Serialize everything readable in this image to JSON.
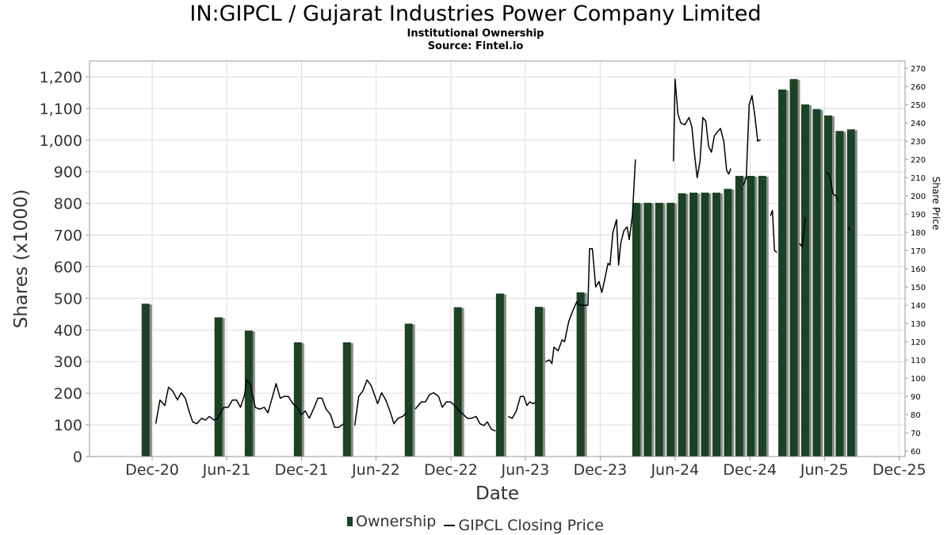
{
  "title": "IN:GIPCL / Gujarat Industries Power Company Limited",
  "subtitle_1": "Institutional Ownership",
  "subtitle_2": "Source: Fintel.io",
  "colors": {
    "bar": "#1a4224",
    "bar_shadow": "#8a8a8a",
    "line": "#000000",
    "grid": "#dddddd"
  },
  "chart_data": {
    "type": "bar",
    "xlabel": "Date",
    "ylabel": "Shares (x1000)",
    "y2label": "Share Price",
    "ylim": [
      0,
      1250
    ],
    "y2lim": [
      57,
      274
    ],
    "yticks": [
      0,
      100,
      200,
      300,
      400,
      500,
      600,
      700,
      800,
      900,
      1000,
      1100,
      1200
    ],
    "yticks_labels": [
      "0",
      "100",
      "200",
      "300",
      "400",
      "500",
      "600",
      "700",
      "800",
      "900",
      "1,000",
      "1,100",
      "1,200"
    ],
    "y2ticks": [
      60,
      70,
      80,
      90,
      100,
      110,
      120,
      130,
      140,
      150,
      160,
      170,
      180,
      190,
      200,
      210,
      220,
      230,
      240,
      250,
      260,
      270
    ],
    "xlim": [
      "2020-07-01",
      "2025-12-15"
    ],
    "xticks": [
      {
        "date": "2020-12-01",
        "label": "Dec-20"
      },
      {
        "date": "2021-06-01",
        "label": "Jun-21"
      },
      {
        "date": "2021-12-01",
        "label": "Dec-21"
      },
      {
        "date": "2022-06-01",
        "label": "Jun-22"
      },
      {
        "date": "2022-12-01",
        "label": "Dec-22"
      },
      {
        "date": "2023-06-01",
        "label": "Jun-23"
      },
      {
        "date": "2023-12-01",
        "label": "Dec-23"
      },
      {
        "date": "2024-06-01",
        "label": "Jun-24"
      },
      {
        "date": "2024-12-01",
        "label": "Dec-24"
      },
      {
        "date": "2025-06-01",
        "label": "Jun-25"
      },
      {
        "date": "2025-12-01",
        "label": "Dec-25"
      }
    ],
    "grid": true,
    "legend_position": "bottom-center",
    "series": [
      {
        "name": "Ownership",
        "type": "bar",
        "axis": "left",
        "points": [
          {
            "x": "2020-11-15",
            "y": 483
          },
          {
            "x": "2021-05-12",
            "y": 440
          },
          {
            "x": "2021-07-25",
            "y": 398
          },
          {
            "x": "2021-11-22",
            "y": 361
          },
          {
            "x": "2022-03-22",
            "y": 361
          },
          {
            "x": "2022-08-20",
            "y": 420
          },
          {
            "x": "2022-12-18",
            "y": 472
          },
          {
            "x": "2023-03-31",
            "y": 515
          },
          {
            "x": "2023-07-04",
            "y": 473
          },
          {
            "x": "2023-10-14",
            "y": 519
          },
          {
            "x": "2024-02-27",
            "y": 802
          },
          {
            "x": "2024-03-26",
            "y": 802
          },
          {
            "x": "2024-04-23",
            "y": 802
          },
          {
            "x": "2024-05-21",
            "y": 802
          },
          {
            "x": "2024-06-18",
            "y": 832
          },
          {
            "x": "2024-07-16",
            "y": 834
          },
          {
            "x": "2024-08-13",
            "y": 834
          },
          {
            "x": "2024-09-10",
            "y": 834
          },
          {
            "x": "2024-10-08",
            "y": 846
          },
          {
            "x": "2024-11-05",
            "y": 887
          },
          {
            "x": "2024-12-03",
            "y": 887
          },
          {
            "x": "2024-12-31",
            "y": 887
          },
          {
            "x": "2025-02-18",
            "y": 1160
          },
          {
            "x": "2025-03-18",
            "y": 1193
          },
          {
            "x": "2025-04-15",
            "y": 1113
          },
          {
            "x": "2025-05-13",
            "y": 1098
          },
          {
            "x": "2025-06-10",
            "y": 1078
          },
          {
            "x": "2025-07-08",
            "y": 1029
          },
          {
            "x": "2025-08-05",
            "y": 1034
          }
        ]
      },
      {
        "name": "GIPCL Closing Price",
        "type": "line",
        "axis": "right",
        "points": [
          [
            "2020-12-10",
            75
          ],
          [
            "2020-12-20",
            88
          ],
          [
            "2021-01-01",
            85
          ],
          [
            "2021-01-10",
            95
          ],
          [
            "2021-01-20",
            93
          ],
          [
            "2021-02-01",
            88
          ],
          [
            "2021-02-10",
            92
          ],
          [
            "2021-02-20",
            89
          ],
          [
            "2021-03-01",
            82
          ],
          [
            "2021-03-10",
            76
          ],
          [
            "2021-03-20",
            75
          ],
          [
            "2021-04-01",
            78
          ],
          [
            "2021-04-10",
            77
          ],
          [
            "2021-04-20",
            79
          ],
          [
            "2021-05-01",
            77
          ],
          [
            "2021-05-10",
            78
          ],
          [
            "2021-05-25",
            84
          ],
          [
            "2021-06-05",
            84
          ],
          [
            "2021-06-15",
            88
          ],
          [
            "2021-06-25",
            88
          ],
          [
            "2021-07-05",
            84
          ],
          [
            "2021-07-15",
            91
          ],
          [
            "2021-07-20",
            99
          ],
          [
            "2021-07-28",
            97
          ],
          [
            "2021-08-10",
            84
          ],
          [
            "2021-08-20",
            83
          ],
          [
            "2021-09-01",
            84
          ],
          [
            "2021-09-10",
            81
          ],
          [
            "2021-09-20",
            89
          ],
          [
            "2021-09-30",
            97
          ],
          [
            "2021-10-10",
            89
          ],
          [
            "2021-10-20",
            90
          ],
          [
            "2021-10-30",
            90
          ],
          [
            "2021-11-10",
            86
          ],
          [
            "2021-11-20",
            84
          ],
          [
            "2021-11-28",
            81
          ],
          [
            "2021-12-01",
            80
          ],
          [
            "2021-12-10",
            82
          ],
          [
            "2021-12-20",
            78
          ],
          [
            "2022-01-01",
            84
          ],
          [
            "2022-01-10",
            89
          ],
          [
            "2022-01-20",
            89
          ],
          [
            "2022-01-30",
            83
          ],
          [
            "2022-02-10",
            80
          ],
          [
            "2022-02-20",
            73
          ],
          [
            "2022-03-01",
            73
          ],
          [
            "2022-03-15",
            75
          ],
          [
            "2022-04-10",
            74
          ],
          [
            "2022-04-20",
            90
          ],
          [
            "2022-04-30",
            93
          ],
          [
            "2022-05-10",
            99
          ],
          [
            "2022-05-20",
            96
          ],
          [
            "2022-06-05",
            86
          ],
          [
            "2022-06-15",
            92
          ],
          [
            "2022-06-25",
            88
          ],
          [
            "2022-07-05",
            82
          ],
          [
            "2022-07-15",
            75
          ],
          [
            "2022-07-25",
            78
          ],
          [
            "2022-08-05",
            79
          ],
          [
            "2022-08-15",
            81
          ],
          [
            "2022-09-05",
            83
          ],
          [
            "2022-09-20",
            87
          ],
          [
            "2022-09-30",
            87
          ],
          [
            "2022-10-10",
            91
          ],
          [
            "2022-10-20",
            92
          ],
          [
            "2022-11-01",
            90
          ],
          [
            "2022-11-10",
            84
          ],
          [
            "2022-11-20",
            87
          ],
          [
            "2022-11-30",
            87
          ],
          [
            "2022-12-10",
            85
          ],
          [
            "2022-12-22",
            82
          ],
          [
            "2023-01-01",
            80
          ],
          [
            "2023-01-10",
            78
          ],
          [
            "2023-01-20",
            78
          ],
          [
            "2023-02-01",
            79
          ],
          [
            "2023-02-10",
            75
          ],
          [
            "2023-02-20",
            74
          ],
          [
            "2023-02-28",
            76
          ],
          [
            "2023-03-10",
            72
          ],
          [
            "2023-03-20",
            71
          ],
          [
            "2023-04-20",
            79
          ],
          [
            "2023-04-30",
            78
          ],
          [
            "2023-05-10",
            82
          ],
          [
            "2023-05-20",
            90
          ],
          [
            "2023-05-28",
            90
          ],
          [
            "2023-06-05",
            85
          ],
          [
            "2023-06-12",
            87
          ],
          [
            "2023-06-20",
            86
          ],
          [
            "2023-06-28",
            87
          ],
          [
            "2023-07-20",
            109
          ],
          [
            "2023-07-30",
            110
          ],
          [
            "2023-08-05",
            108
          ],
          [
            "2023-08-10",
            117
          ],
          [
            "2023-08-20",
            115
          ],
          [
            "2023-08-30",
            121
          ],
          [
            "2023-09-05",
            120
          ],
          [
            "2023-09-15",
            131
          ],
          [
            "2023-09-25",
            137
          ],
          [
            "2023-10-05",
            142
          ],
          [
            "2023-10-12",
            140
          ],
          [
            "2023-11-01",
            140
          ],
          [
            "2023-11-05",
            171
          ],
          [
            "2023-11-12",
            171
          ],
          [
            "2023-11-20",
            150
          ],
          [
            "2023-11-28",
            153
          ],
          [
            "2023-12-05",
            147
          ],
          [
            "2023-12-12",
            154
          ],
          [
            "2023-12-20",
            163
          ],
          [
            "2023-12-25",
            162
          ],
          [
            "2024-01-01",
            180
          ],
          [
            "2024-01-10",
            187
          ],
          [
            "2024-01-15",
            162
          ],
          [
            "2024-01-20",
            174
          ],
          [
            "2024-01-28",
            181
          ],
          [
            "2024-02-05",
            183
          ],
          [
            "2024-02-10",
            176
          ],
          [
            "2024-02-18",
            190
          ],
          [
            "2024-02-25",
            220
          ],
          [
            "2024-05-28",
            219
          ],
          [
            "2024-06-01",
            264
          ],
          [
            "2024-06-08",
            245
          ],
          [
            "2024-06-15",
            240
          ],
          [
            "2024-06-25",
            239
          ],
          [
            "2024-07-05",
            243
          ],
          [
            "2024-07-12",
            238
          ],
          [
            "2024-07-18",
            224
          ],
          [
            "2024-07-25",
            210
          ],
          [
            "2024-08-01",
            219
          ],
          [
            "2024-08-08",
            243
          ],
          [
            "2024-08-15",
            241
          ],
          [
            "2024-08-22",
            227
          ],
          [
            "2024-08-29",
            224
          ],
          [
            "2024-09-05",
            233
          ],
          [
            "2024-09-12",
            235
          ],
          [
            "2024-09-20",
            237
          ],
          [
            "2024-09-28",
            230
          ],
          [
            "2024-10-05",
            214
          ],
          [
            "2024-10-10",
            212
          ],
          [
            "2024-10-15",
            215
          ],
          [
            "2024-11-15",
            206
          ],
          [
            "2024-11-22",
            210
          ],
          [
            "2024-11-29",
            250
          ],
          [
            "2024-12-06",
            255
          ],
          [
            "2024-12-13",
            244
          ],
          [
            "2024-12-20",
            230
          ],
          [
            "2024-12-27",
            231
          ],
          [
            "2025-01-20",
            189
          ],
          [
            "2025-01-25",
            192
          ],
          [
            "2025-01-30",
            170
          ],
          [
            "2025-02-05",
            169
          ],
          [
            "2025-04-01",
            174
          ],
          [
            "2025-04-08",
            172
          ],
          [
            "2025-04-15",
            188
          ],
          [
            "2025-06-08",
            213
          ],
          [
            "2025-06-15",
            210
          ],
          [
            "2025-06-22",
            201
          ],
          [
            "2025-06-29",
            200
          ],
          [
            "2025-07-05",
            197
          ],
          [
            "2025-07-30",
            183
          ],
          [
            "2025-08-02",
            181
          ]
        ]
      }
    ]
  }
}
